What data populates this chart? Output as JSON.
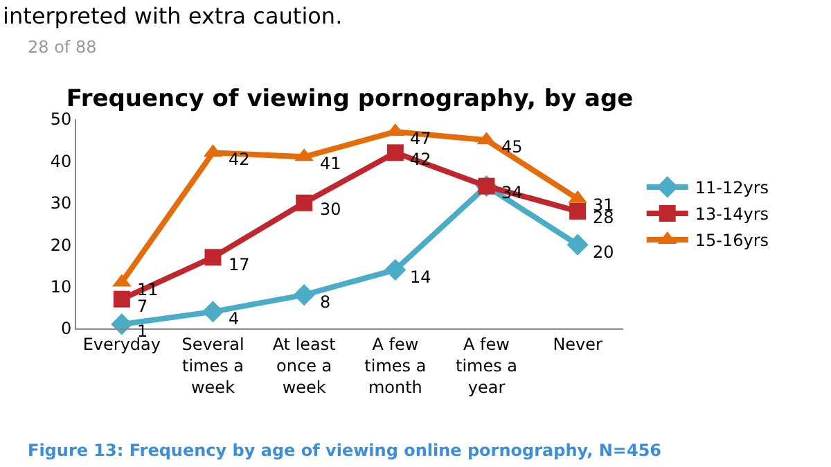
{
  "chart_data": {
    "type": "line",
    "title": "Frequency of viewing pornography, by age",
    "categories": [
      "Everyday",
      "Several times a week",
      "At least once a week",
      "A few times a month",
      "A few times a year",
      "Never"
    ],
    "series": [
      {
        "name": "11-12yrs",
        "color": "#4bacc6",
        "marker": "diamond",
        "values": [
          1,
          4,
          8,
          14,
          34,
          20
        ],
        "value_labels": [
          "1",
          "4",
          "8",
          "14",
          "34",
          "20"
        ]
      },
      {
        "name": "13-14yrs",
        "color": "#c0262d",
        "marker": "square",
        "values": [
          7,
          17,
          30,
          42,
          34,
          28
        ],
        "value_labels": [
          "7",
          "17",
          "30",
          "42",
          null,
          "28"
        ]
      },
      {
        "name": "15-16yrs",
        "color": "#e46c0a",
        "marker": "triangle",
        "values": [
          11,
          42,
          41,
          47,
          45,
          31
        ],
        "value_labels": [
          "11",
          "42",
          "41",
          "47",
          "45",
          "31"
        ]
      }
    ],
    "ylim": [
      0,
      50
    ],
    "yticks": [
      0,
      10,
      20,
      30,
      40,
      50
    ],
    "legend": "right",
    "line_style": "solid",
    "annotations": [
      "interpreted with extra caution.",
      "28 of 88",
      "Figure 13: Frequency by age of viewing online pornography, N=456"
    ]
  }
}
